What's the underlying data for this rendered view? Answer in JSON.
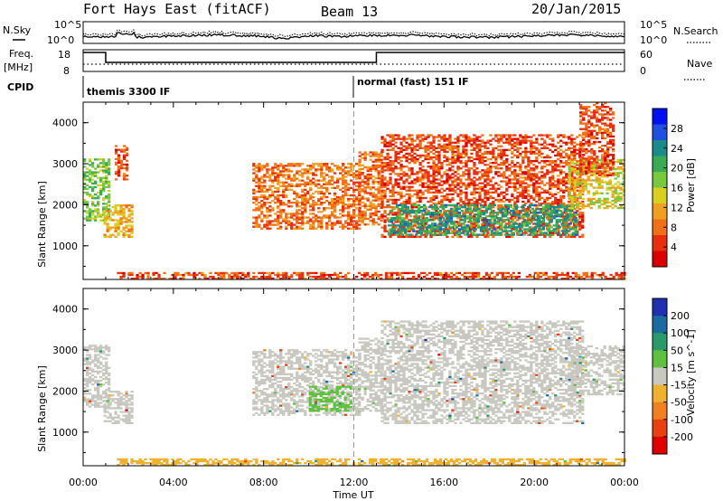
{
  "header": {
    "station": "Fort Hays East (fitACF)",
    "beam": "Beam 13",
    "date": "20/Jan/2015"
  },
  "strips": {
    "nsky_label": "N.Sky",
    "nsearch_label": "N.Search",
    "freq_label_1": "Freq.",
    "freq_label_2": "[MHz]",
    "nave_label": "Nave",
    "cpid_label": "CPID",
    "noise_ticks_left": [
      "10^5",
      "10^0"
    ],
    "noise_ticks_right": [
      "10^5",
      "10^0"
    ],
    "freq_ticks": [
      "18",
      "8"
    ],
    "nave_ticks": [
      "60",
      "0"
    ],
    "cpid_segments": [
      {
        "name": "themis 3300 IF",
        "start_hour": 0
      },
      {
        "name": "normal (fast) 151 IF",
        "start_hour": 12
      }
    ]
  },
  "chart_data": [
    {
      "type": "heatmap",
      "panel": "power",
      "ylabel": "Slant Range [km]",
      "xlabel": "Time UT",
      "x_ticks": [
        "00:00",
        "04:00",
        "08:00",
        "12:00",
        "16:00",
        "20:00",
        "00:00"
      ],
      "xlim_hours": [
        0,
        24
      ],
      "y_ticks": [
        1000,
        2000,
        3000,
        4000
      ],
      "ylim": [
        180,
        4500
      ],
      "colorbar": {
        "label": "Power [dB]",
        "ticks": [
          "4",
          "8",
          "12",
          "16",
          "20",
          "24",
          "28"
        ],
        "range": [
          0,
          32
        ],
        "colors": [
          "#0010f0",
          "#2050e0",
          "#1b8a8a",
          "#3aaa55",
          "#78c840",
          "#d8d020",
          "#f0a020",
          "#f07018",
          "#e83010",
          "#d80000"
        ]
      },
      "echo_regions": [
        {
          "t0": 0.0,
          "t1": 1.2,
          "r0": 1600,
          "r1": 3100,
          "power": 18
        },
        {
          "t0": 0.9,
          "t1": 2.2,
          "r0": 1200,
          "r1": 2000,
          "power": 12
        },
        {
          "t0": 1.4,
          "t1": 2.0,
          "r0": 2600,
          "r1": 3500,
          "power": 6
        },
        {
          "t0": 7.5,
          "t1": 12.2,
          "r0": 1400,
          "r1": 3000,
          "power": 8
        },
        {
          "t0": 12.2,
          "t1": 13.2,
          "r0": 1500,
          "r1": 3300,
          "power": 8
        },
        {
          "t0": 13.2,
          "t1": 22.2,
          "r0": 1200,
          "r1": 3700,
          "power": 6
        },
        {
          "t0": 13.5,
          "t1": 21.8,
          "r0": 1250,
          "r1": 2000,
          "power": 22
        },
        {
          "t0": 21.5,
          "t1": 24.0,
          "r0": 1900,
          "r1": 3100,
          "power": 14
        },
        {
          "t0": 22.0,
          "t1": 23.5,
          "r0": 2700,
          "r1": 4500,
          "power": 6
        },
        {
          "t0": 1.5,
          "t1": 24.0,
          "r0": 180,
          "r1": 350,
          "power": 6
        }
      ]
    },
    {
      "type": "heatmap",
      "panel": "velocity",
      "ylabel": "Slant Range [km]",
      "xlabel": "Time UT",
      "x_ticks": [
        "00:00",
        "04:00",
        "08:00",
        "12:00",
        "16:00",
        "20:00",
        "00:00"
      ],
      "xlim_hours": [
        0,
        24
      ],
      "y_ticks": [
        1000,
        2000,
        3000,
        4000
      ],
      "ylim": [
        180,
        4500
      ],
      "colorbar": {
        "label": "Velocity [m s^-1]",
        "ticks": [
          "200",
          "100",
          "50",
          "15",
          "-15",
          "-50",
          "-100",
          "-200"
        ],
        "range": [
          -250,
          250
        ],
        "colors": [
          "#2030b0",
          "#1b6aa0",
          "#2a9a6a",
          "#60c040",
          "#c8c8c0",
          "#f0b030",
          "#f08020",
          "#e84010",
          "#e00000"
        ]
      },
      "echo_regions": [
        {
          "t0": 0.0,
          "t1": 1.2,
          "r0": 1600,
          "r1": 3100,
          "velocity": 0
        },
        {
          "t0": 0.9,
          "t1": 2.2,
          "r0": 1200,
          "r1": 2000,
          "velocity": 0
        },
        {
          "t0": 7.5,
          "t1": 12.2,
          "r0": 1400,
          "r1": 3000,
          "velocity": 0
        },
        {
          "t0": 10.0,
          "t1": 11.8,
          "r0": 1500,
          "r1": 2100,
          "velocity": 40
        },
        {
          "t0": 12.2,
          "t1": 13.2,
          "r0": 1500,
          "r1": 3300,
          "velocity": 0
        },
        {
          "t0": 13.2,
          "t1": 22.2,
          "r0": 1200,
          "r1": 3700,
          "velocity": 0
        },
        {
          "t0": 21.5,
          "t1": 24.0,
          "r0": 1900,
          "r1": 3100,
          "velocity": 0
        },
        {
          "t0": 1.5,
          "t1": 24.0,
          "r0": 180,
          "r1": 350,
          "velocity": -60
        }
      ]
    }
  ]
}
